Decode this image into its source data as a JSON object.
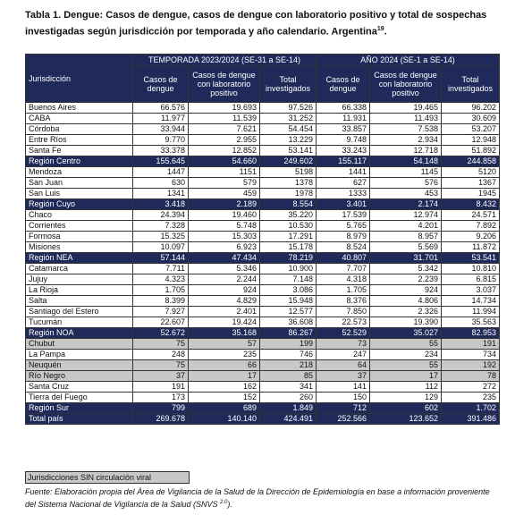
{
  "title": "Tabla 1. Dengue: Casos de dengue, casos de dengue con laboratorio positivo y total de sospechas investigadas según jurisdicción por temporada y año calendario. Argentina",
  "title_sup": "19",
  "title_end": ".",
  "table": {
    "header": {
      "jurisdiccion": "Jurisdicción",
      "groups": [
        "TEMPORADA 2023/2024 (SE-31 a SE-14)",
        "AÑO 2024 (SE-1 a SE-14)"
      ],
      "columns": [
        "Casos de dengue",
        "Casos de dengue con laboratorio positivo",
        "Total investigados",
        "Casos de dengue",
        "Casos de dengue con laboratorio positivo",
        "Total investigados"
      ]
    },
    "rows": [
      {
        "style": "plain",
        "cells": [
          "Buenos Aires",
          "66.576",
          "19.693",
          "97.526",
          "66.338",
          "19.465",
          "96.202"
        ]
      },
      {
        "style": "plain",
        "cells": [
          "CABA",
          "11.977",
          "11.539",
          "31.252",
          "11.931",
          "11.493",
          "30.609"
        ]
      },
      {
        "style": "plain",
        "cells": [
          "Córdoba",
          "33.944",
          "7.621",
          "54.454",
          "33.857",
          "7.538",
          "53.207"
        ]
      },
      {
        "style": "plain",
        "cells": [
          "Entre Ríos",
          "9.770",
          "2.955",
          "13.229",
          "9.748",
          "2.934",
          "12.948"
        ]
      },
      {
        "style": "plain",
        "cells": [
          "Santa Fe",
          "33.378",
          "12.852",
          "53.141",
          "33.243",
          "12.718",
          "51.892"
        ]
      },
      {
        "style": "region",
        "cells": [
          "Región Centro",
          "155.645",
          "54.660",
          "249.602",
          "155.117",
          "54.148",
          "244.858"
        ]
      },
      {
        "style": "plain",
        "cells": [
          "Mendoza",
          "1447",
          "1151",
          "5198",
          "1441",
          "1145",
          "5120"
        ]
      },
      {
        "style": "plain",
        "cells": [
          "San Juan",
          "630",
          "579",
          "1378",
          "627",
          "576",
          "1367"
        ]
      },
      {
        "style": "plain",
        "cells": [
          "San Luis",
          "1341",
          "459",
          "1978",
          "1333",
          "453",
          "1945"
        ]
      },
      {
        "style": "region",
        "cells": [
          "Región Cuyo",
          "3.418",
          "2.189",
          "8.554",
          "3.401",
          "2.174",
          "8.432"
        ]
      },
      {
        "style": "plain",
        "cells": [
          "Chaco",
          "24.394",
          "19.460",
          "35.220",
          "17.539",
          "12.974",
          "24.571"
        ]
      },
      {
        "style": "plain",
        "cells": [
          "Corrientes",
          "7.328",
          "5.748",
          "10.530",
          "5.765",
          "4.201",
          "7.892"
        ]
      },
      {
        "style": "plain",
        "cells": [
          "Formosa",
          "15.325",
          "15.303",
          "17.291",
          "8.979",
          "8.957",
          "9.206"
        ]
      },
      {
        "style": "plain",
        "cells": [
          "Misiones",
          "10.097",
          "6.923",
          "15.178",
          "8.524",
          "5.569",
          "11.872"
        ]
      },
      {
        "style": "region",
        "cells": [
          "Región NEA",
          "57.144",
          "47.434",
          "78.219",
          "40.807",
          "31.701",
          "53.541"
        ]
      },
      {
        "style": "plain",
        "cells": [
          "Catamarca",
          "7.711",
          "5.346",
          "10.900",
          "7.707",
          "5.342",
          "10.810"
        ]
      },
      {
        "style": "plain",
        "cells": [
          "Jujuy",
          "4.323",
          "2.244",
          "7.148",
          "4.318",
          "2.239",
          "6.815"
        ]
      },
      {
        "style": "plain",
        "cells": [
          "La Rioja",
          "1.705",
          "924",
          "3.086",
          "1.705",
          "924",
          "3.037"
        ]
      },
      {
        "style": "plain",
        "cells": [
          "Salta",
          "8.399",
          "4.829",
          "15.948",
          "8.376",
          "4.806",
          "14.734"
        ]
      },
      {
        "style": "plain",
        "cells": [
          "Santiago del Estero",
          "7.927",
          "2.401",
          "12.577",
          "7.850",
          "2.326",
          "11.994"
        ]
      },
      {
        "style": "plain",
        "cells": [
          "Tucumán",
          "22.607",
          "19.424",
          "36.608",
          "22.573",
          "19.390",
          "35.563"
        ]
      },
      {
        "style": "region",
        "cells": [
          "Región NOA",
          "52.672",
          "35.168",
          "86.267",
          "52.529",
          "35.027",
          "82.953"
        ]
      },
      {
        "style": "gray",
        "cells": [
          "Chubut",
          "75",
          "57",
          "199",
          "73",
          "55",
          "191"
        ]
      },
      {
        "style": "plain",
        "cells": [
          "La Pampa",
          "248",
          "235",
          "746",
          "247",
          "234",
          "734"
        ]
      },
      {
        "style": "gray",
        "cells": [
          "Neuquén",
          "75",
          "66",
          "218",
          "64",
          "55",
          "192"
        ]
      },
      {
        "style": "gray",
        "cells": [
          "Río Negro",
          "37",
          "17",
          "85",
          "37",
          "17",
          "78"
        ]
      },
      {
        "style": "plain",
        "cells": [
          "Santa Cruz",
          "191",
          "162",
          "341",
          "141",
          "112",
          "272"
        ]
      },
      {
        "style": "plain",
        "cells": [
          "Tierra del Fuego",
          "173",
          "152",
          "260",
          "150",
          "129",
          "235"
        ]
      },
      {
        "style": "region",
        "cells": [
          "Región Sur",
          "799",
          "689",
          "1.849",
          "712",
          "602",
          "1.702"
        ]
      },
      {
        "style": "region",
        "cells": [
          "Total país",
          "269.678",
          "140.140",
          "424.491",
          "252.566",
          "123.652",
          "391.486"
        ]
      }
    ]
  },
  "legend": {
    "label": "Jurisdicciones SIN circulación viral"
  },
  "source": {
    "text": "Fuente: Elaboración propia del Área de Vigilancia de la Salud de la Dirección de Epidemiología en base a información proveniente del Sistema Nacional de Vigilancia de la Salud (SNVS ",
    "sup": "2.0",
    "end": ")."
  }
}
